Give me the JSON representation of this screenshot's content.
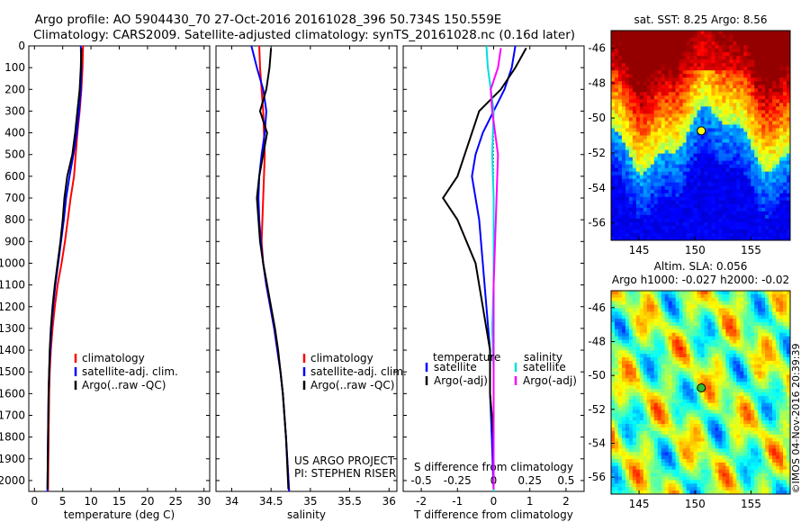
{
  "header": {
    "line1": "Argo profile: AO 5904430_70 27-Oct-2016 20161028_396 50.734S 150.559E",
    "line2": "Climatology: CARS2009. Satellite-adjusted climatology: synTS_20161028.nc (0.16d later)"
  },
  "credit": "©IMOS 04-Nov-2016 20:39:39",
  "chart_data": [
    {
      "type": "line",
      "panel": "temperature",
      "xlabel": "temperature (deg C)",
      "ylabel": "",
      "xlim": [
        -1,
        31
      ],
      "ylim": [
        2050,
        0
      ],
      "xticks": [
        "0",
        "5",
        "10",
        "15",
        "20",
        "25",
        "30"
      ],
      "yticks": [
        "0",
        "100",
        "200",
        "300",
        "400",
        "500",
        "600",
        "700",
        "800",
        "900",
        "1000",
        "1100",
        "1200",
        "1300",
        "1400",
        "1500",
        "1600",
        "1700",
        "1800",
        "1900",
        "2000"
      ],
      "legend": [
        "climatology",
        "satellite-adj. clim.",
        "Argo(..raw -QC)"
      ],
      "legend_position": "lower-middle",
      "series": [
        {
          "name": "climatology",
          "color": "#ff0000",
          "x": [
            8.6,
            8.5,
            8.3,
            8.0,
            7.6,
            7.3,
            7.0,
            6.4,
            5.9,
            5.4,
            4.8,
            4.1,
            3.6,
            3.2,
            2.9,
            2.7,
            2.6,
            2.5,
            2.4
          ],
          "y": [
            0,
            100,
            200,
            300,
            400,
            500,
            600,
            700,
            800,
            900,
            1000,
            1100,
            1200,
            1300,
            1400,
            1500,
            1600,
            1800,
            2050
          ]
        },
        {
          "name": "satellite-adj. clim.",
          "color": "#0000ff",
          "x": [
            8.2,
            8.3,
            8.2,
            7.9,
            7.5,
            6.9,
            6.2,
            5.6,
            5.2,
            4.7,
            4.2,
            3.7,
            3.3,
            3.0,
            2.8,
            2.6,
            2.5,
            2.4,
            2.3
          ],
          "y": [
            0,
            100,
            200,
            300,
            400,
            500,
            600,
            700,
            800,
            900,
            1000,
            1100,
            1200,
            1300,
            1400,
            1500,
            1600,
            1800,
            2050
          ]
        },
        {
          "name": "Argo(..raw -QC)",
          "color": "#000000",
          "x": [
            8.3,
            8.2,
            8.0,
            7.6,
            7.2,
            6.7,
            5.8,
            5.3,
            5.0,
            4.6,
            4.1,
            3.6,
            3.2,
            2.9,
            2.7,
            2.6,
            2.5,
            2.4,
            2.3
          ],
          "y": [
            10,
            100,
            200,
            300,
            400,
            500,
            600,
            700,
            800,
            900,
            1000,
            1100,
            1200,
            1300,
            1400,
            1500,
            1600,
            1800,
            2040
          ]
        }
      ]
    },
    {
      "type": "line",
      "panel": "salinity",
      "xlabel": "salinity",
      "xlim": [
        33.8,
        36.1
      ],
      "ylim": [
        2050,
        0
      ],
      "xticks": [
        "34",
        "34.5",
        "35",
        "35.5",
        "36"
      ],
      "legend": [
        "climatology",
        "satellite-adj. clim.",
        "Argo(..raw -QC)"
      ],
      "legend_position": "lower-right",
      "annotation": [
        "US ARGO PROJECT",
        "PI: STEPHEN RISER"
      ],
      "series": [
        {
          "name": "climatology",
          "color": "#ff0000",
          "x": [
            34.35,
            34.36,
            34.38,
            34.4,
            34.41,
            34.42,
            34.41,
            34.4,
            34.39,
            34.38,
            34.4,
            34.44,
            34.49,
            34.54,
            34.58,
            34.62,
            34.65,
            34.69,
            34.73
          ],
          "y": [
            0,
            100,
            200,
            300,
            400,
            500,
            600,
            700,
            800,
            900,
            1000,
            1100,
            1200,
            1300,
            1400,
            1500,
            1600,
            1800,
            2050
          ]
        },
        {
          "name": "satellite-adj. clim.",
          "color": "#0000ff",
          "x": [
            34.25,
            34.32,
            34.4,
            34.44,
            34.42,
            34.38,
            34.35,
            34.34,
            34.35,
            34.37,
            34.4,
            34.44,
            34.49,
            34.54,
            34.58,
            34.62,
            34.65,
            34.69,
            34.73
          ],
          "y": [
            0,
            100,
            200,
            300,
            400,
            500,
            600,
            700,
            800,
            900,
            1000,
            1100,
            1200,
            1300,
            1400,
            1500,
            1600,
            1800,
            2050
          ]
        },
        {
          "name": "Argo(..raw -QC)",
          "color": "#000000",
          "x": [
            34.5,
            34.48,
            34.44,
            34.36,
            34.45,
            34.4,
            34.35,
            34.32,
            34.34,
            34.36,
            34.4,
            34.45,
            34.5,
            34.55,
            34.59,
            34.62,
            34.65,
            34.69,
            34.72
          ],
          "y": [
            10,
            100,
            200,
            300,
            400,
            500,
            600,
            700,
            800,
            900,
            1000,
            1100,
            1200,
            1300,
            1400,
            1500,
            1600,
            1800,
            2040
          ]
        }
      ]
    },
    {
      "type": "line",
      "panel": "differences",
      "xlabel": "T difference from climatology",
      "xlabel_top": "S difference from climatology",
      "xlim": [
        -2.5,
        2.5
      ],
      "ylim": [
        2050,
        0
      ],
      "xticks": [
        "-2",
        "-1",
        "0",
        "1",
        "2"
      ],
      "xticks_top": [
        "-0.5",
        "-0.25",
        "0",
        "0.25",
        "0.5"
      ],
      "legend_headers": [
        "temperature",
        "salinity"
      ],
      "legend": [
        "satellite",
        "Argo(-adj)",
        "satellite",
        "Argo(-adj)"
      ],
      "legend_position": "lower-middle",
      "series": [
        {
          "name": "satellite",
          "group": "temperature",
          "color": "#0000ff",
          "x": [
            0.6,
            0.5,
            0.3,
            0.0,
            -0.3,
            -0.5,
            -0.6,
            -0.5,
            -0.4,
            -0.3,
            -0.2,
            -0.1,
            -0.1,
            -0.05,
            0.0
          ],
          "y": [
            0,
            100,
            200,
            300,
            400,
            500,
            600,
            700,
            800,
            1000,
            1200,
            1400,
            1600,
            1800,
            2050
          ]
        },
        {
          "name": "Argo(-adj)",
          "group": "temperature",
          "color": "#000000",
          "x": [
            0.9,
            0.6,
            0.2,
            -0.4,
            -0.6,
            -0.8,
            -1.0,
            -1.4,
            -1.0,
            -0.5,
            -0.3,
            -0.1,
            -0.1,
            0.0,
            0.0
          ],
          "y": [
            10,
            100,
            200,
            300,
            400,
            500,
            600,
            700,
            800,
            1000,
            1200,
            1400,
            1600,
            1800,
            2040
          ]
        },
        {
          "name": "satellite",
          "group": "salinity",
          "color": "#00dddd",
          "x": [
            -0.05,
            -0.04,
            -0.02,
            0.0,
            -0.01,
            0.0,
            0.0,
            0.0,
            -0.01,
            0.0,
            0.0,
            0.0
          ],
          "y": [
            0,
            100,
            200,
            300,
            500,
            700,
            900,
            1100,
            1300,
            1500,
            1800,
            2050
          ]
        },
        {
          "name": "Argo(-adj)",
          "group": "salinity",
          "color": "#ff00ff",
          "x": [
            0.05,
            0.03,
            -0.02,
            -0.01,
            0.03,
            0.02,
            0.01,
            0.0,
            0.0,
            0.0,
            0.0,
            0.0
          ],
          "y": [
            10,
            100,
            200,
            300,
            500,
            700,
            900,
            1100,
            1300,
            1500,
            1800,
            2040
          ]
        }
      ]
    },
    {
      "type": "heatmap",
      "panel": "sst-map",
      "title": "sat. SST: 8.25 Argo: 8.56",
      "xlim": [
        142.5,
        158.5
      ],
      "ylim": [
        -57,
        -45
      ],
      "xticks": [
        "145",
        "150",
        "155"
      ],
      "yticks": [
        "-46",
        "-48",
        "-50",
        "-52",
        "-54",
        "-56"
      ],
      "marker": {
        "lon": 150.559,
        "lat": -50.734,
        "fill": "#ffff00"
      }
    },
    {
      "type": "heatmap",
      "panel": "sla-map",
      "title": "Altim. SLA: 0.056",
      "subtitle": "Argo h1000: -0.027 h2000: -0.02",
      "xlim": [
        142.5,
        158.5
      ],
      "ylim": [
        -57,
        -45
      ],
      "xticks": [
        "145",
        "150",
        "155"
      ],
      "yticks": [
        "-46",
        "-48",
        "-50",
        "-52",
        "-54",
        "-56"
      ],
      "marker": {
        "lon": 150.559,
        "lat": -50.734,
        "fill": "#33bb33"
      }
    }
  ]
}
